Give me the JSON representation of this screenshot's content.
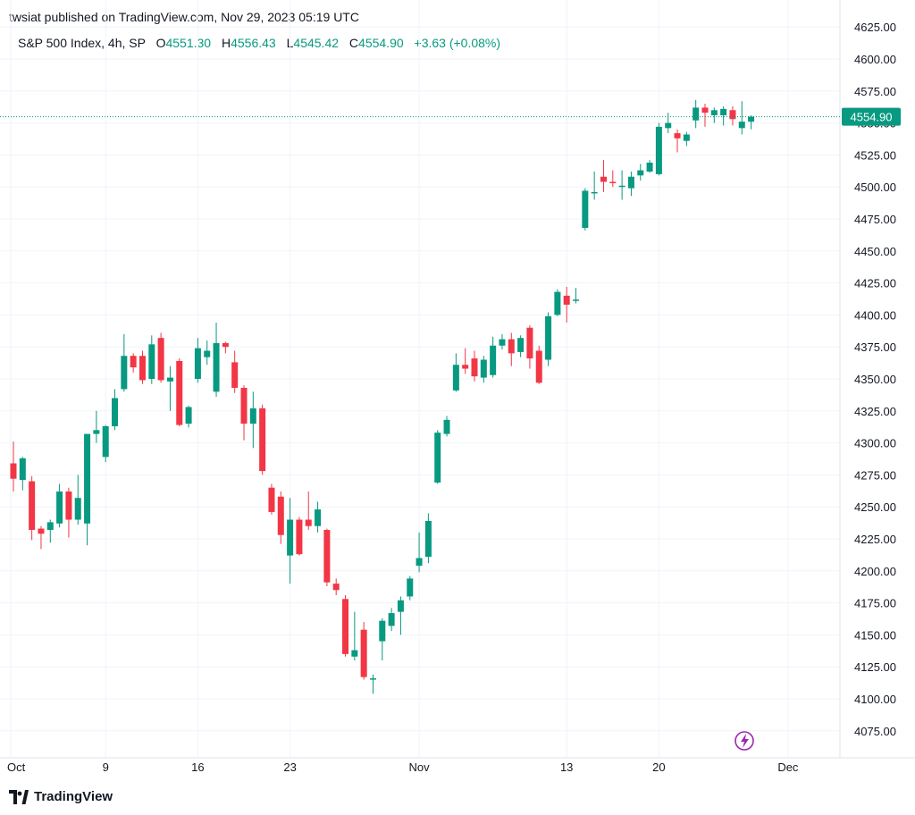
{
  "header": {
    "published": "twsiat published on TradingView.com, Nov 29, 2023 05:19 UTC"
  },
  "legend": {
    "symbol": "S&P 500 Index, 4h, SP",
    "open_label": "O",
    "open": "4551.30",
    "high_label": "H",
    "high": "4556.43",
    "low_label": "L",
    "low": "4545.42",
    "close_label": "C",
    "close": "4554.90",
    "change": "+3.63 (+0.08%)"
  },
  "footer": {
    "brand": "TradingView",
    "logo_icon": "tradingview-logo-icon"
  },
  "colors": {
    "up": "#089981",
    "down": "#f23645",
    "grid": "#f0f3fa",
    "axis_text": "#131722",
    "accent": "#9c27b0"
  },
  "chart_data": {
    "type": "candlestick",
    "y_ticks": [
      "4075.00",
      "4100.00",
      "4125.00",
      "4150.00",
      "4175.00",
      "4200.00",
      "4225.00",
      "4250.00",
      "4275.00",
      "4300.00",
      "4325.00",
      "4350.00",
      "4375.00",
      "4400.00",
      "4425.00",
      "4450.00",
      "4475.00",
      "4500.00",
      "4525.00",
      "4550.00",
      "4575.00",
      "4600.00",
      "4625.00"
    ],
    "y_range": [
      4062,
      4632
    ],
    "x_ticks": [
      {
        "label": "Oct",
        "bar": 0
      },
      {
        "label": "9",
        "bar": 10
      },
      {
        "label": "16",
        "bar": 20
      },
      {
        "label": "23",
        "bar": 30
      },
      {
        "label": "Nov",
        "bar": 44
      },
      {
        "label": "13",
        "bar": 60
      },
      {
        "label": "20",
        "bar": 70
      },
      {
        "label": "Dec",
        "bar": 84
      }
    ],
    "grid": true,
    "last_price": "4554.90",
    "last_value": 4554.9,
    "bars": [
      {
        "i": 0,
        "o": 4284,
        "h": 4301,
        "l": 4262,
        "c": 4272
      },
      {
        "i": 1,
        "o": 4271,
        "h": 4289,
        "l": 4263,
        "c": 4288
      },
      {
        "i": 2,
        "o": 4270,
        "h": 4274,
        "l": 4224,
        "c": 4232
      },
      {
        "i": 3,
        "o": 4233,
        "h": 4235,
        "l": 4217,
        "c": 4229
      },
      {
        "i": 4,
        "o": 4232,
        "h": 4240,
        "l": 4222,
        "c": 4238
      },
      {
        "i": 5,
        "o": 4237,
        "h": 4268,
        "l": 4234,
        "c": 4262
      },
      {
        "i": 6,
        "o": 4262,
        "h": 4265,
        "l": 4226,
        "c": 4240
      },
      {
        "i": 7,
        "o": 4240,
        "h": 4275,
        "l": 4236,
        "c": 4257
      },
      {
        "i": 8,
        "o": 4237,
        "h": 4307,
        "l": 4220,
        "c": 4307
      },
      {
        "i": 9,
        "o": 4307,
        "h": 4325,
        "l": 4300,
        "c": 4310
      },
      {
        "i": 10,
        "o": 4289,
        "h": 4314,
        "l": 4285,
        "c": 4313
      },
      {
        "i": 11,
        "o": 4313,
        "h": 4342,
        "l": 4310,
        "c": 4335
      },
      {
        "i": 12,
        "o": 4342,
        "h": 4385,
        "l": 4340,
        "c": 4368
      },
      {
        "i": 13,
        "o": 4368,
        "h": 4370,
        "l": 4355,
        "c": 4359
      },
      {
        "i": 14,
        "o": 4368,
        "h": 4372,
        "l": 4346,
        "c": 4349
      },
      {
        "i": 15,
        "o": 4350,
        "h": 4384,
        "l": 4346,
        "c": 4377
      },
      {
        "i": 16,
        "o": 4382,
        "h": 4386,
        "l": 4347,
        "c": 4349
      },
      {
        "i": 17,
        "o": 4348,
        "h": 4360,
        "l": 4325,
        "c": 4351
      },
      {
        "i": 18,
        "o": 4364,
        "h": 4366,
        "l": 4313,
        "c": 4314
      },
      {
        "i": 19,
        "o": 4315,
        "h": 4329,
        "l": 4312,
        "c": 4328
      },
      {
        "i": 20,
        "o": 4350,
        "h": 4382,
        "l": 4347,
        "c": 4374
      },
      {
        "i": 21,
        "o": 4367,
        "h": 4380,
        "l": 4361,
        "c": 4372
      },
      {
        "i": 22,
        "o": 4340,
        "h": 4394,
        "l": 4336,
        "c": 4378
      },
      {
        "i": 23,
        "o": 4378,
        "h": 4379,
        "l": 4370,
        "c": 4375
      },
      {
        "i": 24,
        "o": 4363,
        "h": 4372,
        "l": 4339,
        "c": 4343
      },
      {
        "i": 25,
        "o": 4343,
        "h": 4345,
        "l": 4302,
        "c": 4315
      },
      {
        "i": 26,
        "o": 4315,
        "h": 4340,
        "l": 4296,
        "c": 4327
      },
      {
        "i": 27,
        "o": 4327,
        "h": 4330,
        "l": 4275,
        "c": 4278
      },
      {
        "i": 28,
        "o": 4265,
        "h": 4268,
        "l": 4244,
        "c": 4246
      },
      {
        "i": 29,
        "o": 4258,
        "h": 4262,
        "l": 4221,
        "c": 4228
      },
      {
        "i": 30,
        "o": 4212,
        "h": 4257,
        "l": 4190,
        "c": 4240
      },
      {
        "i": 31,
        "o": 4240,
        "h": 4242,
        "l": 4212,
        "c": 4213
      },
      {
        "i": 32,
        "o": 4240,
        "h": 4262,
        "l": 4232,
        "c": 4235
      },
      {
        "i": 33,
        "o": 4235,
        "h": 4254,
        "l": 4230,
        "c": 4248
      },
      {
        "i": 34,
        "o": 4232,
        "h": 4233,
        "l": 4188,
        "c": 4191
      },
      {
        "i": 35,
        "o": 4190,
        "h": 4194,
        "l": 4181,
        "c": 4185
      },
      {
        "i": 36,
        "o": 4178,
        "h": 4181,
        "l": 4133,
        "c": 4135
      },
      {
        "i": 37,
        "o": 4133,
        "h": 4168,
        "l": 4130,
        "c": 4138
      },
      {
        "i": 38,
        "o": 4154,
        "h": 4160,
        "l": 4115,
        "c": 4117
      },
      {
        "i": 39,
        "o": 4116,
        "h": 4119,
        "l": 4104,
        "c": 4116
      },
      {
        "i": 40,
        "o": 4145,
        "h": 4163,
        "l": 4130,
        "c": 4161
      },
      {
        "i": 41,
        "o": 4157,
        "h": 4171,
        "l": 4153,
        "c": 4167
      },
      {
        "i": 42,
        "o": 4168,
        "h": 4180,
        "l": 4150,
        "c": 4177
      },
      {
        "i": 43,
        "o": 4180,
        "h": 4196,
        "l": 4177,
        "c": 4194
      },
      {
        "i": 44,
        "o": 4204,
        "h": 4230,
        "l": 4199,
        "c": 4210
      },
      {
        "i": 45,
        "o": 4211,
        "h": 4245,
        "l": 4206,
        "c": 4239
      },
      {
        "i": 46,
        "o": 4269,
        "h": 4310,
        "l": 4268,
        "c": 4308
      },
      {
        "i": 47,
        "o": 4307,
        "h": 4321,
        "l": 4305,
        "c": 4318
      },
      {
        "i": 48,
        "o": 4341,
        "h": 4370,
        "l": 4340,
        "c": 4361
      },
      {
        "i": 49,
        "o": 4361,
        "h": 4374,
        "l": 4354,
        "c": 4358
      },
      {
        "i": 50,
        "o": 4366,
        "h": 4372,
        "l": 4348,
        "c": 4352
      },
      {
        "i": 51,
        "o": 4351,
        "h": 4368,
        "l": 4347,
        "c": 4365
      },
      {
        "i": 52,
        "o": 4353,
        "h": 4383,
        "l": 4351,
        "c": 4376
      },
      {
        "i": 53,
        "o": 4376,
        "h": 4385,
        "l": 4373,
        "c": 4381
      },
      {
        "i": 54,
        "o": 4381,
        "h": 4386,
        "l": 4360,
        "c": 4370
      },
      {
        "i": 55,
        "o": 4371,
        "h": 4384,
        "l": 4367,
        "c": 4382
      },
      {
        "i": 56,
        "o": 4390,
        "h": 4392,
        "l": 4358,
        "c": 4366
      },
      {
        "i": 57,
        "o": 4372,
        "h": 4376,
        "l": 4346,
        "c": 4347
      },
      {
        "i": 58,
        "o": 4365,
        "h": 4402,
        "l": 4360,
        "c": 4399
      },
      {
        "i": 59,
        "o": 4400,
        "h": 4420,
        "l": 4399,
        "c": 4418
      },
      {
        "i": 60,
        "o": 4415,
        "h": 4422,
        "l": 4394,
        "c": 4408
      },
      {
        "i": 61,
        "o": 4411,
        "h": 4421,
        "l": 4409,
        "c": 4412
      },
      {
        "i": 62,
        "o": 4468,
        "h": 4499,
        "l": 4466,
        "c": 4497
      },
      {
        "i": 63,
        "o": 4495,
        "h": 4512,
        "l": 4490,
        "c": 4496
      },
      {
        "i": 64,
        "o": 4508,
        "h": 4521,
        "l": 4496,
        "c": 4504
      },
      {
        "i": 65,
        "o": 4504,
        "h": 4513,
        "l": 4500,
        "c": 4503
      },
      {
        "i": 66,
        "o": 4500,
        "h": 4513,
        "l": 4490,
        "c": 4501
      },
      {
        "i": 67,
        "o": 4499,
        "h": 4512,
        "l": 4493,
        "c": 4508
      },
      {
        "i": 68,
        "o": 4509,
        "h": 4518,
        "l": 4505,
        "c": 4513
      },
      {
        "i": 69,
        "o": 4512,
        "h": 4521,
        "l": 4511,
        "c": 4519
      },
      {
        "i": 70,
        "o": 4510,
        "h": 4550,
        "l": 4509,
        "c": 4547
      },
      {
        "i": 71,
        "o": 4546,
        "h": 4558,
        "l": 4542,
        "c": 4550
      },
      {
        "i": 72,
        "o": 4542,
        "h": 4545,
        "l": 4527,
        "c": 4538
      },
      {
        "i": 73,
        "o": 4536,
        "h": 4543,
        "l": 4532,
        "c": 4541
      },
      {
        "i": 74,
        "o": 4552,
        "h": 4568,
        "l": 4546,
        "c": 4562
      },
      {
        "i": 75,
        "o": 4562,
        "h": 4565,
        "l": 4547,
        "c": 4558
      },
      {
        "i": 76,
        "o": 4556,
        "h": 4562,
        "l": 4550,
        "c": 4560
      },
      {
        "i": 77,
        "o": 4556,
        "h": 4563,
        "l": 4548,
        "c": 4561
      },
      {
        "i": 78,
        "o": 4560,
        "h": 4563,
        "l": 4548,
        "c": 4553
      },
      {
        "i": 79,
        "o": 4546,
        "h": 4567,
        "l": 4541,
        "c": 4551
      },
      {
        "i": 80,
        "o": 4551,
        "h": 4556,
        "l": 4545,
        "c": 4555
      }
    ]
  }
}
